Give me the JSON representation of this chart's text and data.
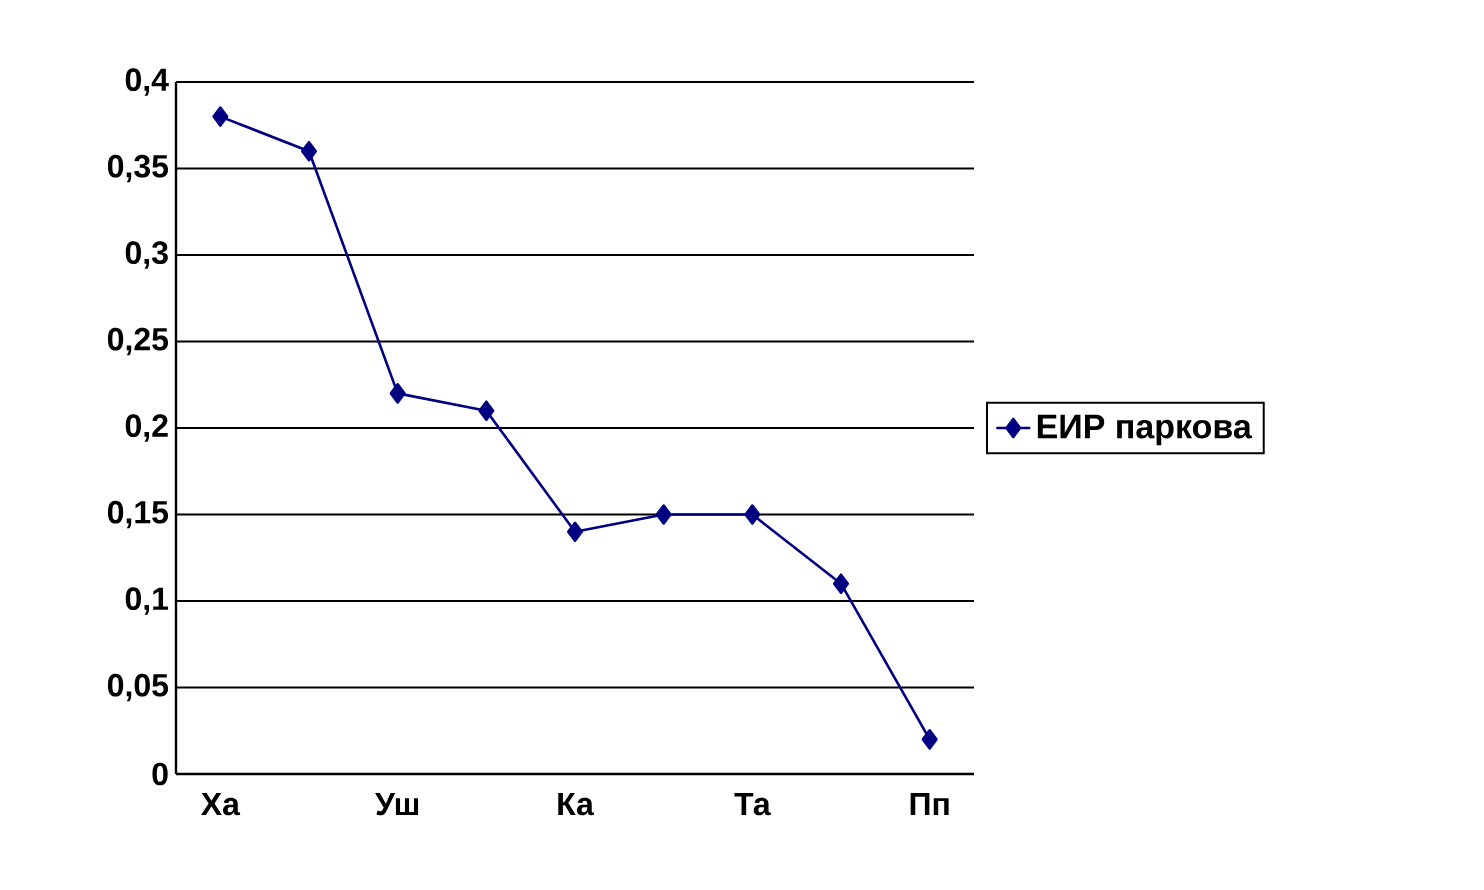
{
  "chart_data": {
    "type": "line",
    "categories": [
      "Ха",
      null,
      "Уш",
      null,
      "Ка",
      null,
      "Та",
      null,
      "Пп"
    ],
    "series": [
      {
        "name": "ЕИР паркова",
        "color": "#000080",
        "values": [
          0.38,
          0.36,
          0.22,
          0.21,
          0.14,
          0.15,
          0.15,
          0.11,
          0.02
        ]
      }
    ],
    "ylim": [
      0,
      0.4
    ],
    "yticks": [
      {
        "value": 0,
        "label": "0"
      },
      {
        "value": 0.05,
        "label": "0,05"
      },
      {
        "value": 0.1,
        "label": "0,1"
      },
      {
        "value": 0.15,
        "label": "0,15"
      },
      {
        "value": 0.2,
        "label": "0,2"
      },
      {
        "value": 0.25,
        "label": "0,25"
      },
      {
        "value": 0.3,
        "label": "0,3"
      },
      {
        "value": 0.35,
        "label": "0,35"
      },
      {
        "value": 0.4,
        "label": "0,4"
      }
    ],
    "grid": "y",
    "legend": "right",
    "marker": "diamond",
    "line_style": "solid"
  }
}
